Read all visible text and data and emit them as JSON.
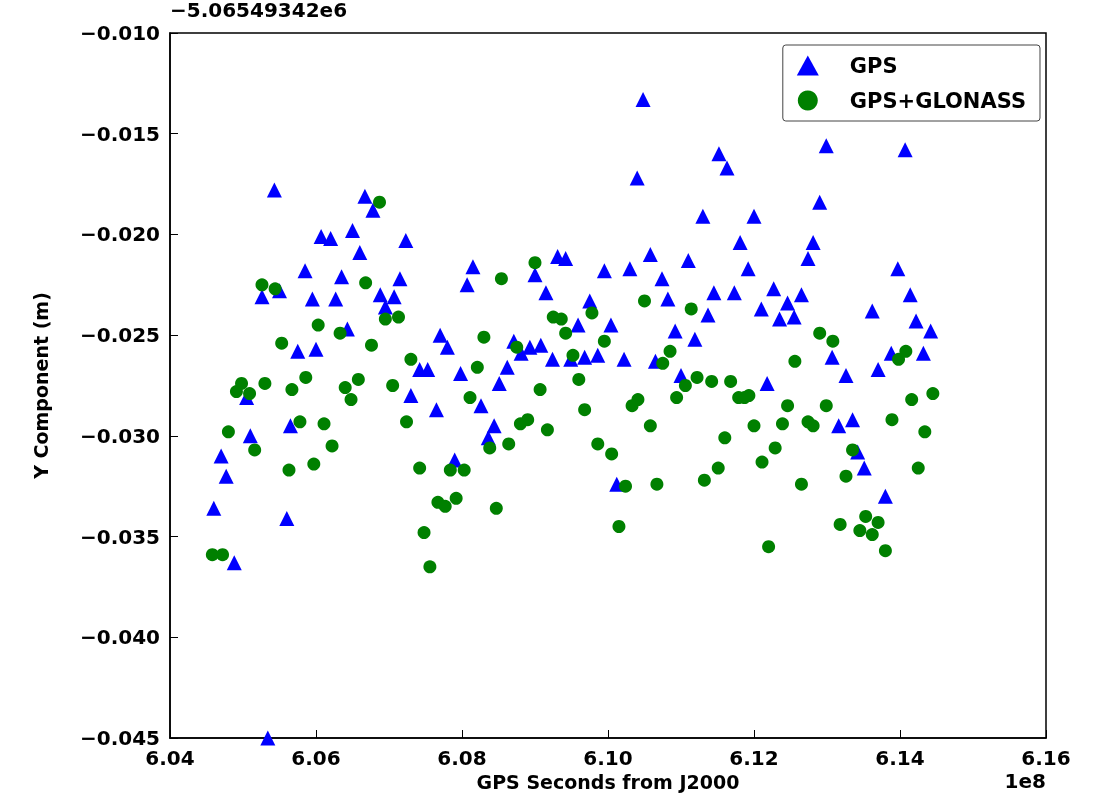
{
  "chart_data": {
    "type": "scatter",
    "xlabel": "GPS Seconds from J2000",
    "ylabel": "Y Component (m)",
    "annotations": [
      "−5.06549342e6",
      "1e8"
    ],
    "xlim": [
      6.04,
      6.16
    ],
    "xticks": [
      {
        "value": 6.04,
        "label": "6.04"
      },
      {
        "value": 6.06,
        "label": "6.06"
      },
      {
        "value": 6.08,
        "label": "6.08"
      },
      {
        "value": 6.1,
        "label": "6.10"
      },
      {
        "value": 6.12,
        "label": "6.12"
      },
      {
        "value": 6.14,
        "label": "6.14"
      },
      {
        "value": 6.16,
        "label": "6.16"
      }
    ],
    "ylim": [
      -0.045,
      -0.01
    ],
    "yticks": [
      {
        "value": -0.045,
        "label": "−0.045"
      },
      {
        "value": -0.04,
        "label": "−0.040"
      },
      {
        "value": -0.035,
        "label": "−0.035"
      },
      {
        "value": -0.03,
        "label": "−0.030"
      },
      {
        "value": -0.025,
        "label": "−0.025"
      },
      {
        "value": -0.02,
        "label": "−0.020"
      },
      {
        "value": -0.015,
        "label": "−0.015"
      },
      {
        "value": -0.01,
        "label": "−0.010"
      }
    ],
    "grid": false,
    "legend": "top right",
    "series": [
      {
        "name": "GPS",
        "color": "#0000ff",
        "marker": "triangle",
        "x": [
          6.046,
          6.047,
          6.0477,
          6.0488,
          6.0505,
          6.051,
          6.0526,
          6.0534,
          6.0543,
          6.055,
          6.056,
          6.0565,
          6.0575,
          6.0585,
          6.0595,
          6.06,
          6.0607,
          6.062,
          6.0627,
          6.0635,
          6.0643,
          6.065,
          6.066,
          6.0667,
          6.0678,
          6.0688,
          6.0695,
          6.0707,
          6.0715,
          6.0723,
          6.073,
          6.0742,
          6.0753,
          6.0765,
          6.077,
          6.078,
          6.079,
          6.0798,
          6.0807,
          6.0815,
          6.0826,
          6.0836,
          6.0844,
          6.0851,
          6.0862,
          6.0871,
          6.0881,
          6.0893,
          6.09,
          6.0908,
          6.0915,
          6.0924,
          6.0931,
          6.0942,
          6.0949,
          6.0959,
          6.0968,
          6.0975,
          6.0986,
          6.0995,
          6.1004,
          6.1012,
          6.1022,
          6.103,
          6.104,
          6.1048,
          6.1058,
          6.1065,
          6.1074,
          6.1082,
          6.1092,
          6.11,
          6.111,
          6.1119,
          6.113,
          6.1137,
          6.1145,
          6.1152,
          6.1163,
          6.1173,
          6.1181,
          6.1192,
          6.12,
          6.121,
          6.1218,
          6.1227,
          6.1235,
          6.1246,
          6.1255,
          6.1265,
          6.1274,
          6.1281,
          6.129,
          6.1299,
          6.1307,
          6.1316,
          6.1326,
          6.1335,
          6.1342,
          6.1351,
          6.1362,
          6.137,
          6.138,
          6.1388,
          6.1397,
          6.1407,
          6.1414,
          6.1422,
          6.1432,
          6.1442
        ],
        "values": [
          -0.0336,
          -0.031,
          -0.032,
          -0.0363,
          -0.0281,
          -0.03,
          -0.0231,
          -0.045,
          -0.0178,
          -0.0228,
          -0.0341,
          -0.0295,
          -0.0258,
          -0.0218,
          -0.0232,
          -0.0257,
          -0.0201,
          -0.0202,
          -0.0232,
          -0.0221,
          -0.0247,
          -0.0198,
          -0.0209,
          -0.0181,
          -0.0188,
          -0.023,
          -0.0236,
          -0.0231,
          -0.0222,
          -0.0203,
          -0.028,
          -0.0267,
          -0.0267,
          -0.0287,
          -0.025,
          -0.0256,
          -0.0312,
          -0.0269,
          -0.0225,
          -0.0216,
          -0.0285,
          -0.0301,
          -0.0295,
          -0.0274,
          -0.0266,
          -0.0253,
          -0.0259,
          -0.0256,
          -0.022,
          -0.0255,
          -0.0229,
          -0.0262,
          -0.0211,
          -0.0212,
          -0.0262,
          -0.0245,
          -0.0261,
          -0.0233,
          -0.026,
          -0.0218,
          -0.0245,
          -0.0324,
          -0.0262,
          -0.0217,
          -0.0172,
          -0.0133,
          -0.021,
          -0.0263,
          -0.0222,
          -0.0232,
          -0.0248,
          -0.027,
          -0.0213,
          -0.0252,
          -0.0191,
          -0.024,
          -0.0229,
          -0.016,
          -0.0167,
          -0.0229,
          -0.0204,
          -0.0217,
          -0.0191,
          -0.0237,
          -0.0274,
          -0.0227,
          -0.0242,
          -0.0234,
          -0.0241,
          -0.023,
          -0.0212,
          -0.0204,
          -0.0184,
          -0.0156,
          -0.0261,
          -0.0295,
          -0.027,
          -0.0292,
          -0.0308,
          -0.0316,
          -0.0238,
          -0.0267,
          -0.033,
          -0.0259,
          -0.0217,
          -0.0158,
          -0.023,
          -0.0243,
          -0.0259,
          -0.0248
        ]
      },
      {
        "name": "GPS+GLONASS",
        "color": "#008000",
        "marker": "circle",
        "x": [
          6.0458,
          6.0472,
          6.048,
          6.0491,
          6.0498,
          6.0509,
          6.0516,
          6.0526,
          6.053,
          6.0544,
          6.0553,
          6.0563,
          6.0567,
          6.0578,
          6.0586,
          6.0597,
          6.0603,
          6.0611,
          6.0622,
          6.0633,
          6.064,
          6.0648,
          6.0658,
          6.0668,
          6.0676,
          6.0687,
          6.0695,
          6.0705,
          6.0713,
          6.0724,
          6.073,
          6.0742,
          6.0748,
          6.0756,
          6.0767,
          6.0777,
          6.0784,
          6.0792,
          6.0803,
          6.0811,
          6.0821,
          6.083,
          6.0838,
          6.0847,
          6.0854,
          6.0864,
          6.0875,
          6.088,
          6.089,
          6.09,
          6.0907,
          6.0917,
          6.0925,
          6.0936,
          6.0942,
          6.0952,
          6.096,
          6.0968,
          6.0978,
          6.0986,
          6.0995,
          6.1005,
          6.1015,
          6.1024,
          6.1033,
          6.1041,
          6.105,
          6.1058,
          6.1067,
          6.1075,
          6.1085,
          6.1094,
          6.1106,
          6.1114,
          6.1122,
          6.1132,
          6.1142,
          6.1151,
          6.116,
          6.1168,
          6.1179,
          6.1187,
          6.1193,
          6.12,
          6.1211,
          6.122,
          6.1229,
          6.1239,
          6.1246,
          6.1256,
          6.1265,
          6.1274,
          6.1281,
          6.129,
          6.1299,
          6.1308,
          6.1318,
          6.1326,
          6.1335,
          6.1345,
          6.1353,
          6.1362,
          6.137,
          6.138,
          6.1389,
          6.1398,
          6.1408,
          6.1416,
          6.1425,
          6.1434,
          6.1445
        ],
        "values": [
          -0.0359,
          -0.0359,
          -0.0298,
          -0.0278,
          -0.0274,
          -0.0279,
          -0.0307,
          -0.0225,
          -0.0274,
          -0.0227,
          -0.0254,
          -0.0317,
          -0.0277,
          -0.0293,
          -0.0271,
          -0.0314,
          -0.0245,
          -0.0294,
          -0.0305,
          -0.0249,
          -0.0276,
          -0.0282,
          -0.0272,
          -0.0224,
          -0.0255,
          -0.0184,
          -0.0242,
          -0.0275,
          -0.0241,
          -0.0293,
          -0.0262,
          -0.0316,
          -0.0348,
          -0.0365,
          -0.0333,
          -0.0335,
          -0.0317,
          -0.0331,
          -0.0317,
          -0.0281,
          -0.0266,
          -0.0251,
          -0.0306,
          -0.0336,
          -0.0222,
          -0.0304,
          -0.0256,
          -0.0294,
          -0.0292,
          -0.0214,
          -0.0277,
          -0.0297,
          -0.0241,
          -0.0242,
          -0.0249,
          -0.026,
          -0.0272,
          -0.0287,
          -0.0239,
          -0.0304,
          -0.0253,
          -0.0309,
          -0.0345,
          -0.0325,
          -0.0285,
          -0.0282,
          -0.0233,
          -0.0295,
          -0.0324,
          -0.0264,
          -0.0258,
          -0.0281,
          -0.0275,
          -0.0237,
          -0.0271,
          -0.0322,
          -0.0273,
          -0.0316,
          -0.0301,
          -0.0273,
          -0.0281,
          -0.0281,
          -0.028,
          -0.0295,
          -0.0313,
          -0.0355,
          -0.0306,
          -0.0294,
          -0.0285,
          -0.0263,
          -0.0324,
          -0.0293,
          -0.0295,
          -0.0249,
          -0.0285,
          -0.0253,
          -0.0344,
          -0.032,
          -0.0307,
          -0.0347,
          -0.034,
          -0.0349,
          -0.0343,
          -0.0357,
          -0.0292,
          -0.0262,
          -0.0258,
          -0.0282,
          -0.0316,
          -0.0298,
          -0.0279
        ]
      }
    ]
  }
}
